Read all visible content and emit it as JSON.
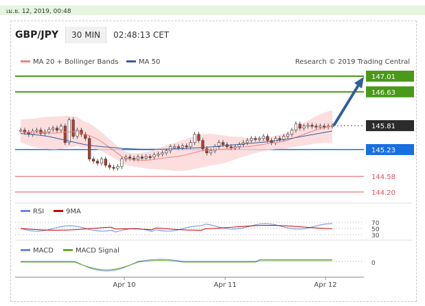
{
  "topbar": {
    "date": "เม.ย. 12, 2019, 00:48"
  },
  "header": {
    "pair": "GBP/JPY",
    "timeframe": "30 MIN",
    "time": "02:48:13 CET"
  },
  "legend": {
    "ma20": "MA 20 + Bollinger Bands",
    "ma50": "MA 50",
    "credit": "Research © 2019 Trading Central"
  },
  "colors": {
    "up_target": "#4a9a1a",
    "current": "#2b2b2b",
    "support": "#1a6fe0",
    "resistance_low": "#e05060",
    "arrow": "#2f5e9e",
    "ma20": "#f08080",
    "ma50": "#3a5a99",
    "band": "#fbd6d6"
  },
  "chart_data": {
    "type": "line",
    "x_ticks": [
      "Apr 10",
      "Apr 11",
      "Apr 12"
    ],
    "ylim": [
      144.0,
      147.3
    ],
    "levels": [
      {
        "value": "147.01",
        "kind": "target"
      },
      {
        "value": "146.63",
        "kind": "target"
      },
      {
        "value": "145.81",
        "kind": "current"
      },
      {
        "value": "145.23",
        "kind": "support"
      },
      {
        "value": "144.58",
        "kind": "support2"
      },
      {
        "value": "144.20",
        "kind": "support3"
      }
    ],
    "price": [
      145.7,
      145.65,
      145.6,
      145.68,
      145.7,
      145.62,
      145.66,
      145.72,
      145.75,
      145.7,
      145.8,
      145.4,
      145.95,
      145.55,
      145.7,
      145.6,
      145.5,
      145.0,
      144.95,
      144.9,
      145.0,
      144.85,
      144.8,
      144.78,
      144.82,
      145.0,
      145.05,
      145.02,
      145.0,
      145.05,
      145.02,
      145.06,
      145.05,
      145.1,
      145.12,
      145.15,
      145.2,
      145.3,
      145.3,
      145.28,
      145.32,
      145.3,
      145.4,
      145.6,
      145.45,
      145.25,
      145.15,
      145.2,
      145.3,
      145.4,
      145.35,
      145.3,
      145.28,
      145.3,
      145.35,
      145.4,
      145.45,
      145.5,
      145.48,
      145.5,
      145.55,
      145.45,
      145.4,
      145.5,
      145.48,
      145.55,
      145.6,
      145.7,
      145.85,
      145.75,
      145.8,
      145.82,
      145.8,
      145.78,
      145.8,
      145.78,
      145.8,
      145.81
    ],
    "ma20": [
      145.68,
      145.66,
      145.64,
      145.63,
      145.64,
      145.63,
      145.63,
      145.64,
      145.66,
      145.66,
      145.67,
      145.6,
      145.58,
      145.52,
      145.45,
      145.35,
      145.25,
      145.15,
      145.05,
      145.0,
      144.98,
      144.97,
      144.97,
      144.98,
      145.0,
      145.02,
      145.04,
      145.05,
      145.07,
      145.1,
      145.13,
      145.17,
      145.2,
      145.22,
      145.23,
      145.23,
      145.24,
      145.25,
      145.27,
      145.29,
      145.3,
      145.32,
      145.34,
      145.36,
      145.38,
      145.4,
      145.42,
      145.45,
      145.5,
      145.55,
      145.6,
      145.65,
      145.7,
      145.74,
      145.77,
      145.79
    ],
    "ma50": [
      145.62,
      145.6,
      145.58,
      145.55,
      145.5,
      145.45,
      145.4,
      145.35,
      145.32,
      145.3,
      145.28,
      145.26,
      145.25,
      145.24,
      145.24,
      145.24,
      145.24,
      145.25,
      145.26,
      145.27,
      145.28,
      145.3,
      145.32,
      145.34,
      145.36,
      145.38,
      145.4,
      145.42,
      145.45,
      145.48,
      145.52,
      145.56,
      145.6,
      145.64,
      145.68
    ],
    "arrow_target": "147.01",
    "rsi": {
      "label": "RSI",
      "signal_label": "9MA",
      "levels": [
        "70",
        "50",
        "30"
      ]
    },
    "macd": {
      "label": "MACD",
      "signal_label": "MACD Signal",
      "zero": "0"
    }
  }
}
